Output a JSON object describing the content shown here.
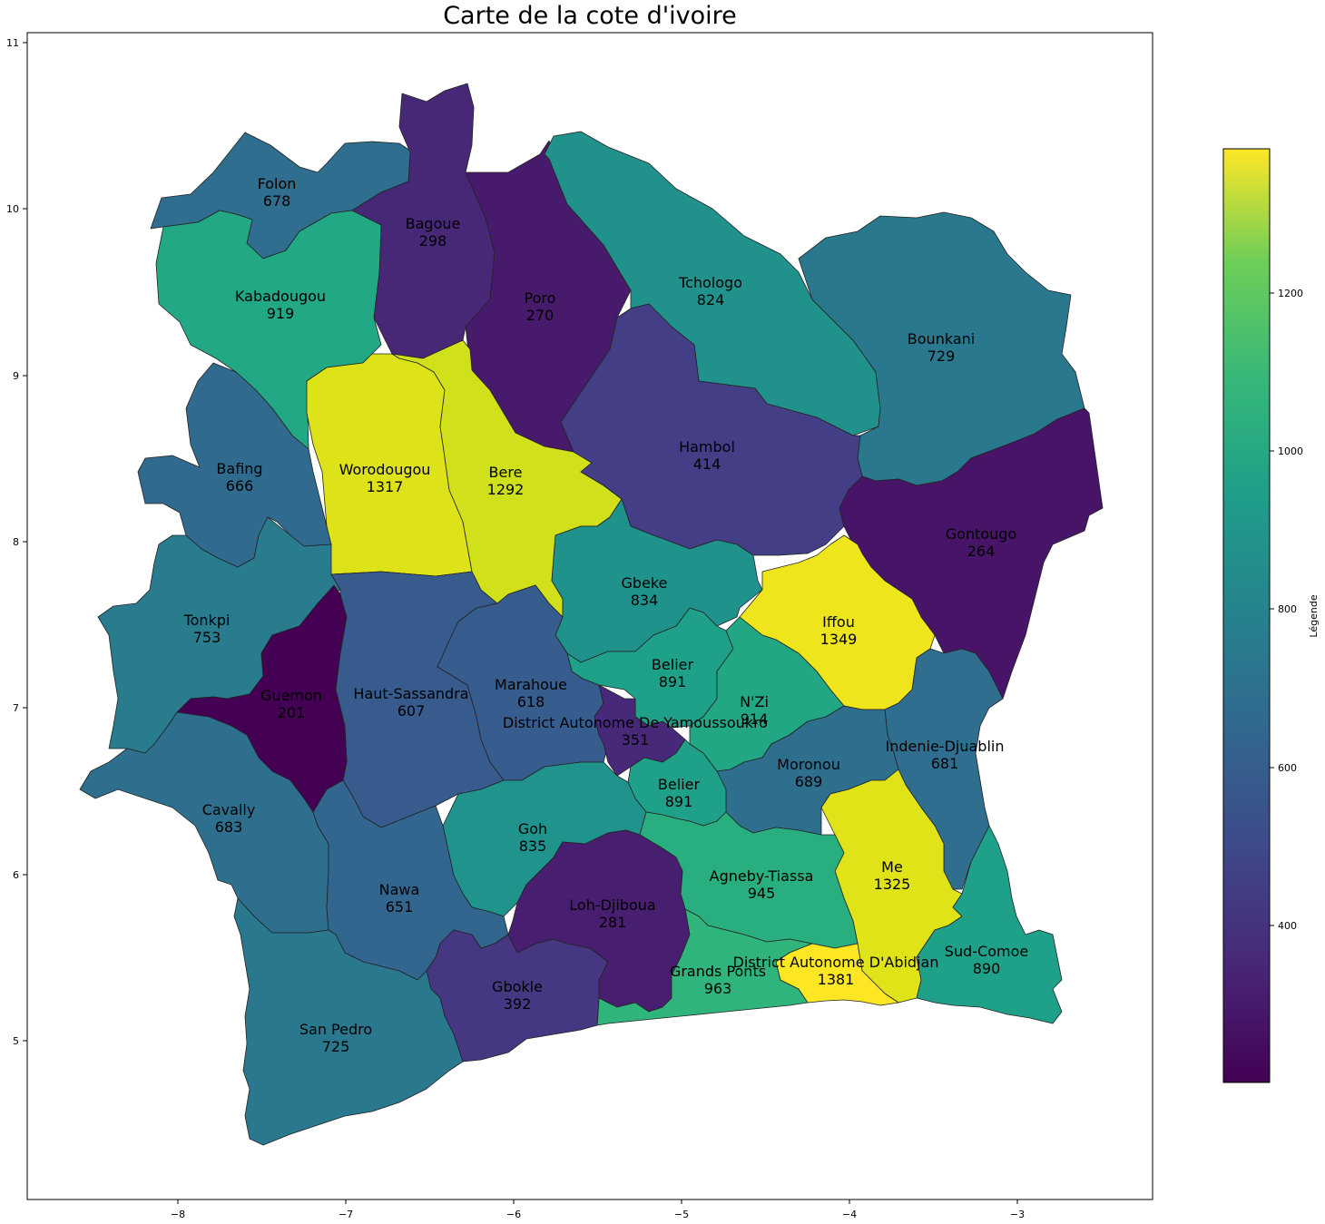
{
  "title": "Carte de la cote d'ivoire",
  "colorbar": {
    "label": "Légende",
    "ticks": [
      "400",
      "600",
      "800",
      "1000",
      "1200"
    ],
    "min": 201,
    "max": 1381,
    "colormap": "viridis"
  },
  "axes": {
    "x_ticks": [
      "−8",
      "−7",
      "−6",
      "−5",
      "−4",
      "−3"
    ],
    "y_ticks": [
      "5",
      "6",
      "7",
      "8",
      "9",
      "10",
      "11"
    ]
  },
  "regions": [
    {
      "name": "Folon",
      "value": "678",
      "color": "#2f6e8e"
    },
    {
      "name": "Bagoue",
      "value": "298",
      "color": "#472877"
    },
    {
      "name": "Poro",
      "value": "270",
      "color": "#481a6c"
    },
    {
      "name": "Tchologo",
      "value": "824",
      "color": "#21918c"
    },
    {
      "name": "Kabadougou",
      "value": "919",
      "color": "#22a884"
    },
    {
      "name": "Bounkani",
      "value": "729",
      "color": "#2a788e"
    },
    {
      "name": "Worodougou",
      "value": "1317",
      "color": "#dde318"
    },
    {
      "name": "Bere",
      "value": "1292",
      "color": "#d0e11c"
    },
    {
      "name": "Hambol",
      "value": "414",
      "color": "#433e85"
    },
    {
      "name": "Bafing",
      "value": "666",
      "color": "#306a8e"
    },
    {
      "name": "Gontougo",
      "value": "264",
      "color": "#481467"
    },
    {
      "name": "Gbeke",
      "value": "834",
      "color": "#20928c"
    },
    {
      "name": "Tonkpi",
      "value": "753",
      "color": "#297b8e"
    },
    {
      "name": "Iffou",
      "value": "1349",
      "color": "#efe51c"
    },
    {
      "name": "Belier",
      "value": "891",
      "color": "#1fa088"
    },
    {
      "name": "Marahoue",
      "value": "618",
      "color": "#365d8d"
    },
    {
      "name": "Haut-Sassandra",
      "value": "607",
      "color": "#375b8d"
    },
    {
      "name": "Guemon",
      "value": "201",
      "color": "#440154"
    },
    {
      "name": "N'Zi",
      "value": "914",
      "color": "#22a785"
    },
    {
      "name": "District Autonome De Yamoussoukro",
      "value": "351",
      "color": "#482979"
    },
    {
      "name": "Indenie-Djuablin",
      "value": "681",
      "color": "#2f6e8e"
    },
    {
      "name": "Moronou",
      "value": "689",
      "color": "#2e6f8e"
    },
    {
      "name": "Belier",
      "value": "891",
      "color": "#1fa088"
    },
    {
      "name": "Cavally",
      "value": "683",
      "color": "#2e6f8e"
    },
    {
      "name": "Goh",
      "value": "835",
      "color": "#20938c"
    },
    {
      "name": "Me",
      "value": "1325",
      "color": "#dfe318"
    },
    {
      "name": "Agneby-Tiassa",
      "value": "945",
      "color": "#29af7f"
    },
    {
      "name": "Nawa",
      "value": "651",
      "color": "#32668e"
    },
    {
      "name": "Loh-Djiboua",
      "value": "281",
      "color": "#481f70"
    },
    {
      "name": "Sud-Comoe",
      "value": "890",
      "color": "#1fa088"
    },
    {
      "name": "Grands Ponts",
      "value": "963",
      "color": "#2fb47c"
    },
    {
      "name": "District Autonome D'Abidjan",
      "value": "1381",
      "color": "#fde725"
    },
    {
      "name": "Gbokle",
      "value": "392",
      "color": "#453781"
    },
    {
      "name": "San Pedro",
      "value": "725",
      "color": "#2a788e"
    }
  ]
}
